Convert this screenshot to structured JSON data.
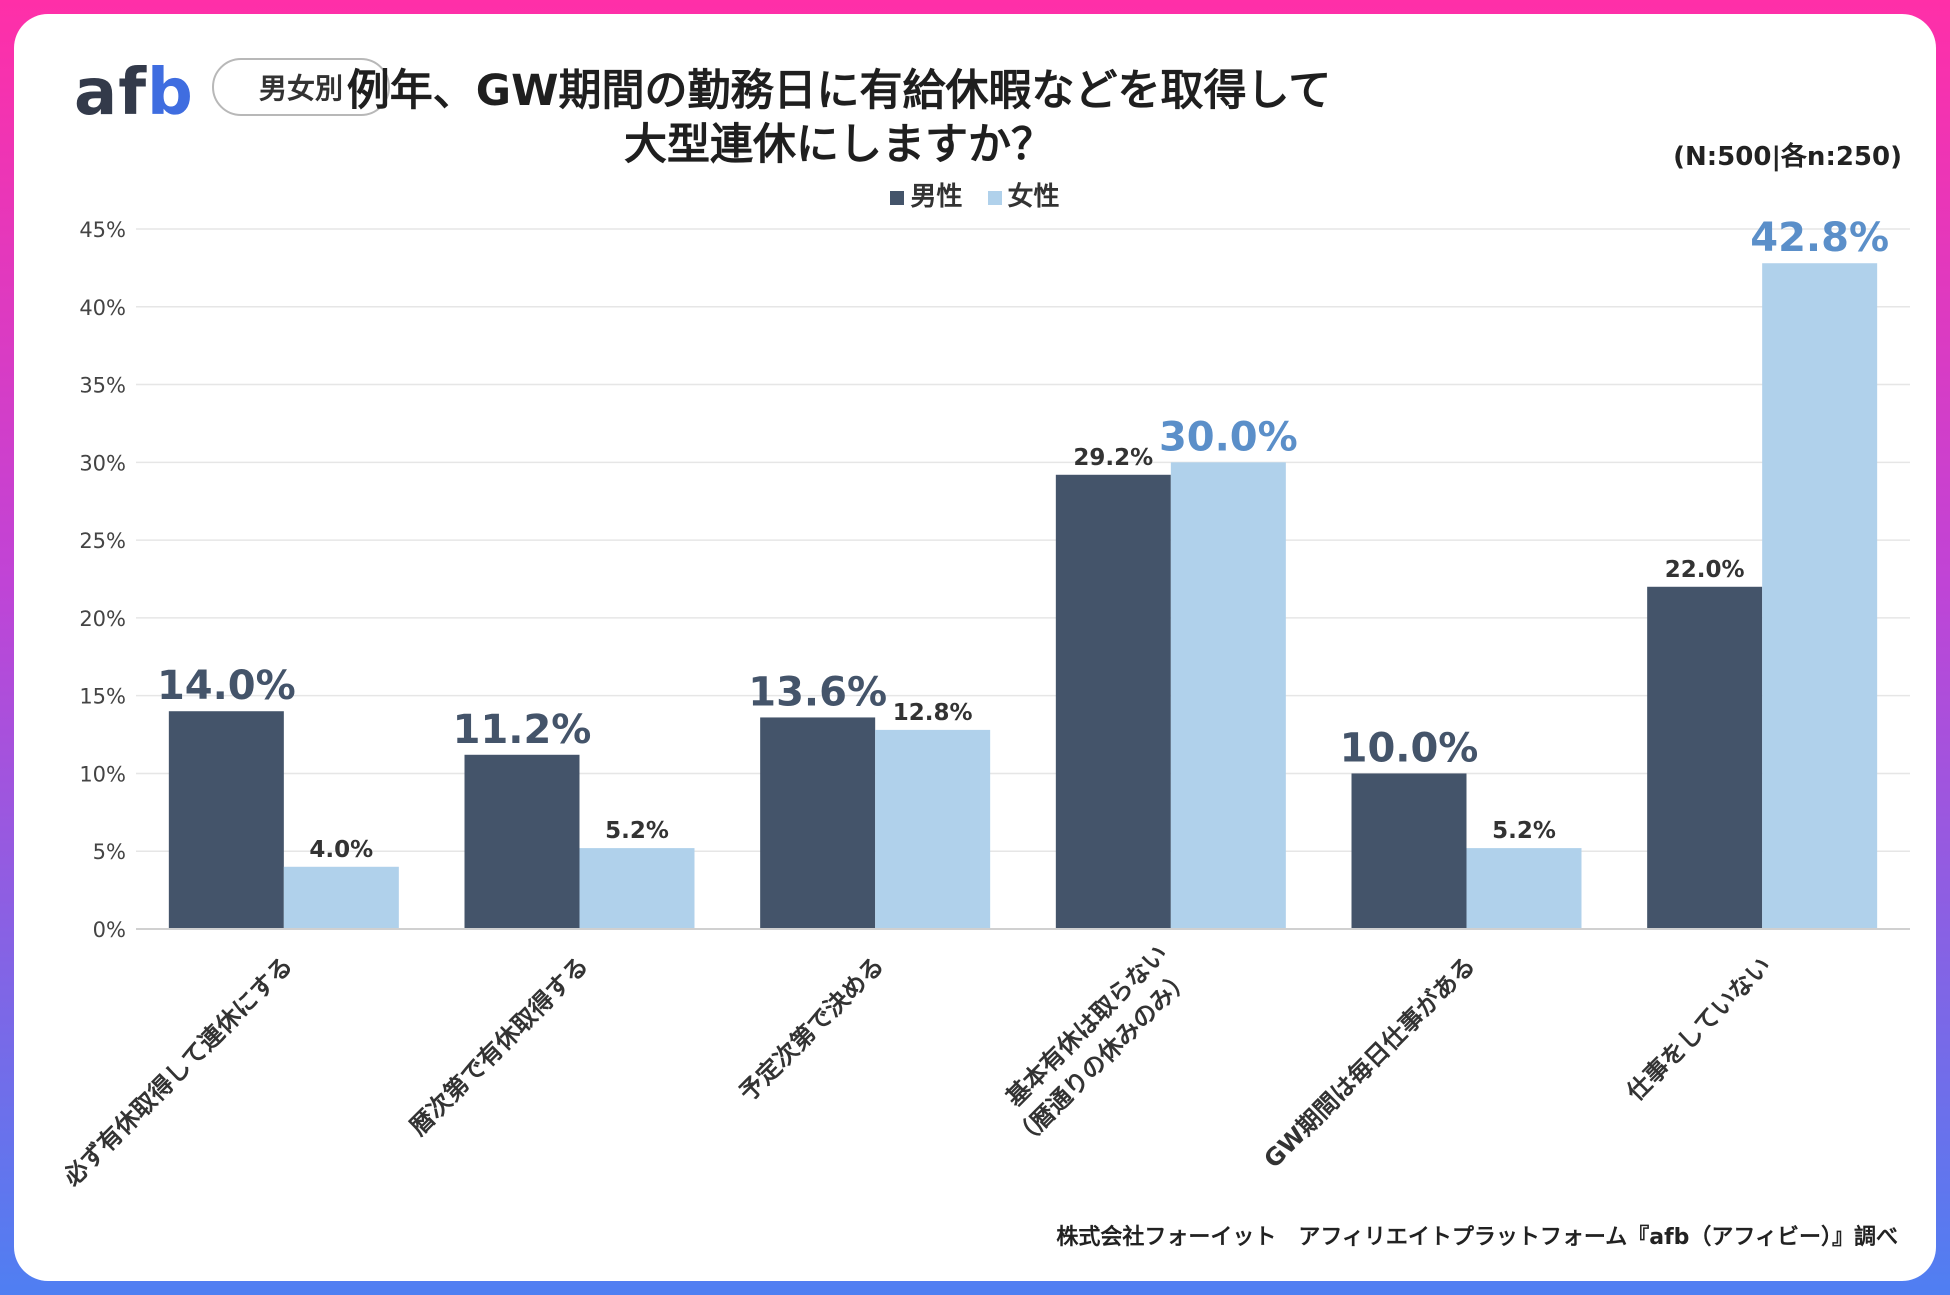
{
  "header": {
    "logo_text": "afb",
    "tag_label": "男女別",
    "title_line1": "例年、GW期間の勤務日に有給休暇などを取得して",
    "title_line2": "大型連休にしますか？",
    "sample_note": "(N:500|各n:250)"
  },
  "footer": {
    "source": "株式会社フォーイット　アフィリエイトプラットフォーム『afb（アフィビー）』調べ"
  },
  "colors": {
    "male": "#44546a",
    "female": "#b0d1eb",
    "label_big_male": "#44546a",
    "label_big_female": "#5b8fc9",
    "label_small": "#333333",
    "grid": "#e6e6e6",
    "axis_text": "#444444"
  },
  "chart_data": {
    "type": "bar",
    "title": "例年、GW期間の勤務日に有給休暇などを取得して大型連休にしますか？",
    "categories": [
      "必ず有休取得して連休にする",
      "暦次第で有休取得する",
      "予定次第で決める",
      "基本有休は取らない\n（暦通りの休みのみ）",
      "GW期間は毎日仕事がある",
      "仕事をしていない"
    ],
    "series": [
      {
        "name": "男性",
        "values": [
          14.0,
          11.2,
          13.6,
          29.2,
          10.0,
          22.0
        ],
        "labels": [
          "14.0%",
          "11.2%",
          "13.6%",
          "29.2%",
          "10.0%",
          "22.0%"
        ],
        "emphasis": [
          true,
          true,
          true,
          false,
          true,
          false
        ]
      },
      {
        "name": "女性",
        "values": [
          4.0,
          5.2,
          12.8,
          30.0,
          5.2,
          42.8
        ],
        "labels": [
          "4.0%",
          "5.2%",
          "12.8%",
          "30.0%",
          "5.2%",
          "42.8%"
        ],
        "emphasis": [
          false,
          false,
          false,
          true,
          false,
          true
        ]
      }
    ],
    "y_ticks": [
      "0%",
      "5%",
      "10%",
      "15%",
      "20%",
      "25%",
      "30%",
      "35%",
      "40%",
      "45%"
    ],
    "ylim": [
      0,
      45
    ],
    "grid": true,
    "legend": "top-center"
  }
}
